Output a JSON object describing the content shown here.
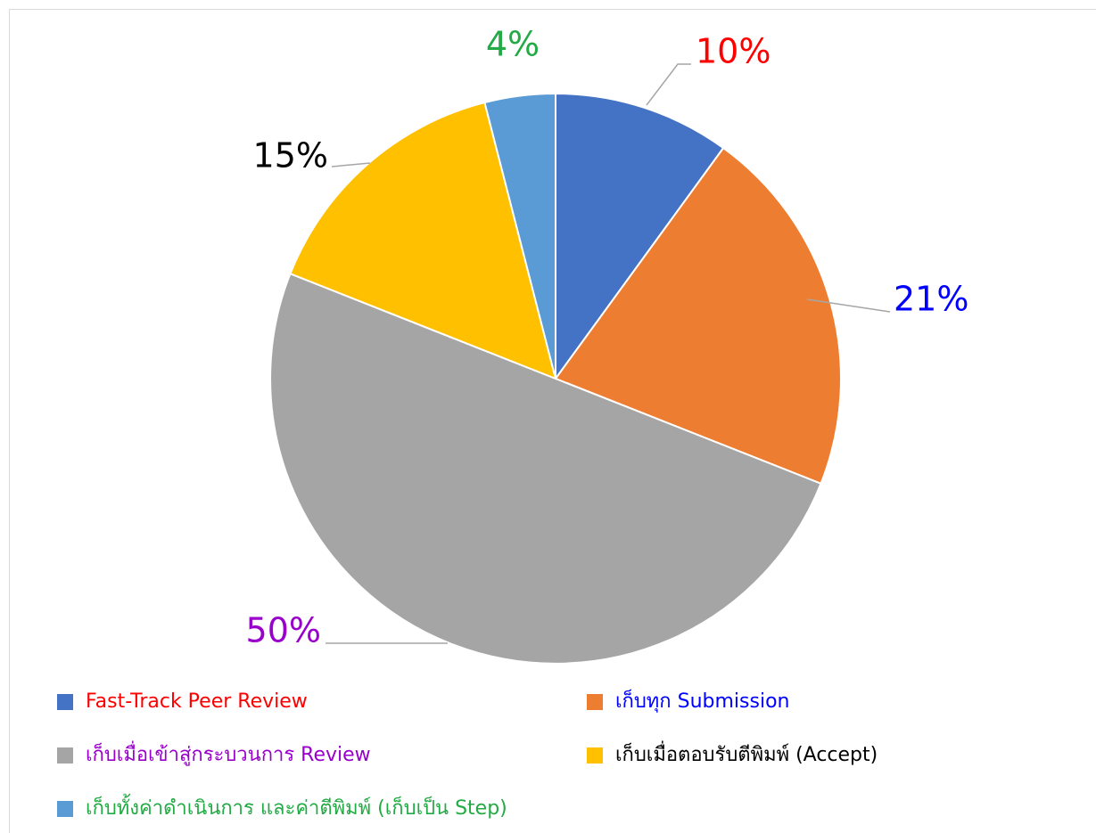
{
  "chart_data": {
    "type": "pie",
    "categories": [
      "Fast-Track Peer Review",
      "เก็บทุก Submission",
      "เก็บเมื่อเข้าสู่กระบวนการ Review",
      "เก็บเมื่อตอบรับตีพิมพ์ (Accept)",
      "เก็บทั้งค่าดำเนินการ และค่าตีพิมพ์ (เก็บเป็น Step)"
    ],
    "values": [
      10,
      21,
      50,
      15,
      4
    ],
    "value_labels": [
      "10%",
      "21%",
      "50%",
      "15%",
      "4%"
    ],
    "colors": [
      "#4472c4",
      "#ed7d31",
      "#a5a5a5",
      "#ffc000",
      "#5b9bd5"
    ],
    "label_colors": [
      "#ff0000",
      "#0000ff",
      "#9900cc",
      "#000000",
      "#22aa44"
    ],
    "legend": "bottom"
  }
}
